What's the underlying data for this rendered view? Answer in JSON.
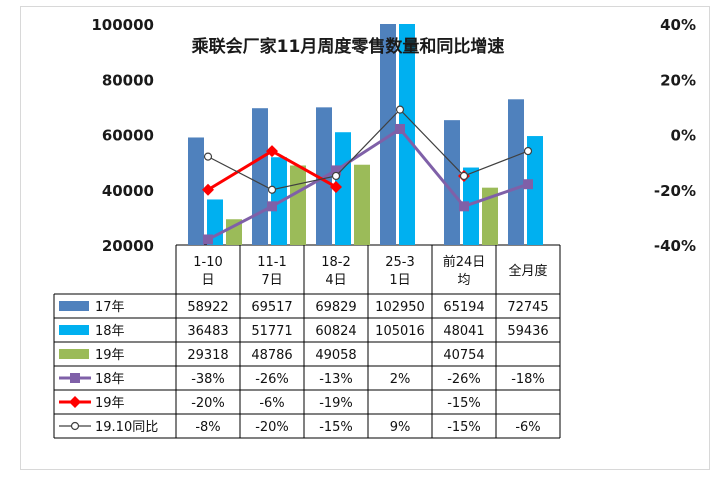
{
  "chart_data": {
    "type": "bar",
    "title": "乘联会厂家11月周度零售数量和同比增速",
    "categories": [
      "1-10日",
      "11-17日",
      "18-24日",
      "25-31日",
      "前24日均",
      "全月度"
    ],
    "y_left": {
      "ticks": [
        "100000",
        "80000",
        "60000",
        "40000",
        "20000"
      ],
      "range": [
        20000,
        100000
      ]
    },
    "y_right": {
      "ticks": [
        "40%",
        "20%",
        "0%",
        "-20%",
        "-40%"
      ],
      "range": [
        -40,
        40
      ],
      "unit": "%"
    },
    "series": [
      {
        "name": "17年",
        "kind": "bar",
        "color": "#4f81bd",
        "values": [
          58922,
          69517,
          69829,
          102950,
          65194,
          72745
        ],
        "labels": [
          "58922",
          "69517",
          "69829",
          "102950",
          "65194",
          "72745"
        ]
      },
      {
        "name": "18年",
        "kind": "bar",
        "color": "#00b0f0",
        "values": [
          36483,
          51771,
          60824,
          105016,
          48041,
          59436
        ],
        "labels": [
          "36483",
          "51771",
          "60824",
          "105016",
          "48041",
          "59436"
        ]
      },
      {
        "name": "19年",
        "kind": "bar",
        "color": "#9bbb59",
        "values": [
          29318,
          48786,
          49058,
          null,
          40754,
          null
        ],
        "labels": [
          "29318",
          "48786",
          "49058",
          "",
          "40754",
          ""
        ]
      },
      {
        "name": "18年",
        "kind": "line",
        "color": "#7f60a8",
        "marker": "square",
        "values": [
          -38,
          -26,
          -13,
          2,
          -26,
          -18
        ],
        "labels": [
          "-38%",
          "-26%",
          "-13%",
          "2%",
          "-26%",
          "-18%"
        ]
      },
      {
        "name": "19年",
        "kind": "line",
        "color": "#ff0000",
        "marker": "diamond",
        "values": [
          -20,
          -6,
          -19,
          null,
          -15,
          null
        ],
        "labels": [
          "-20%",
          "-6%",
          "-19%",
          "",
          "-15%",
          ""
        ]
      },
      {
        "name": "19.10同比",
        "kind": "line",
        "color": "#404040",
        "marker": "circle-open",
        "values": [
          -8,
          -20,
          -15,
          9,
          -15,
          -6
        ],
        "labels": [
          "-8%",
          "-20%",
          "-15%",
          "9%",
          "-15%",
          "-6%"
        ]
      }
    ]
  }
}
